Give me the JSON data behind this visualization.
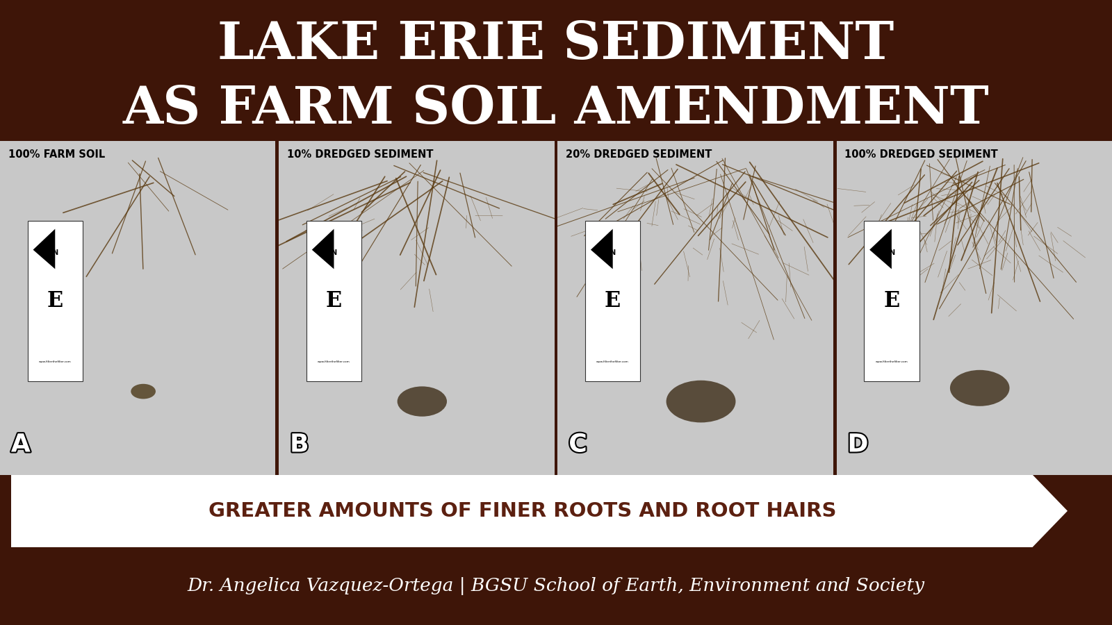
{
  "title_line1": "LAKE ERIE SEDIMENT",
  "title_line2": "AS FARM SOIL AMENDMENT",
  "title_bg_color": "#E84A00",
  "title_text_color": "#FFFFFF",
  "panel_labels": [
    "100% FARM SOIL",
    "10% DREDGED SEDIMENT",
    "20% DREDGED SEDIMENT",
    "100% DREDGED SEDIMENT"
  ],
  "panel_letters": [
    "A",
    "B",
    "C",
    "D"
  ],
  "panel_bg_color": "#BBBBBB",
  "arrow_text": "GREATER AMOUNTS OF FINER ROOTS AND ROOT HAIRS",
  "arrow_bg_color": "#5C2010",
  "arrow_text_color": "#5C2010",
  "arrow_fill_color": "#FFFFFF",
  "bottom_bg_color": "#3E1508",
  "bottom_text": "Dr. Angelica Vazquez-Ortega | BGSU School of Earth, Environment and Society",
  "bottom_text_color": "#FFFFFF",
  "border_color": "#5C2010",
  "label_text_color": "#000000",
  "letter_text_color": "#FFFFFF"
}
